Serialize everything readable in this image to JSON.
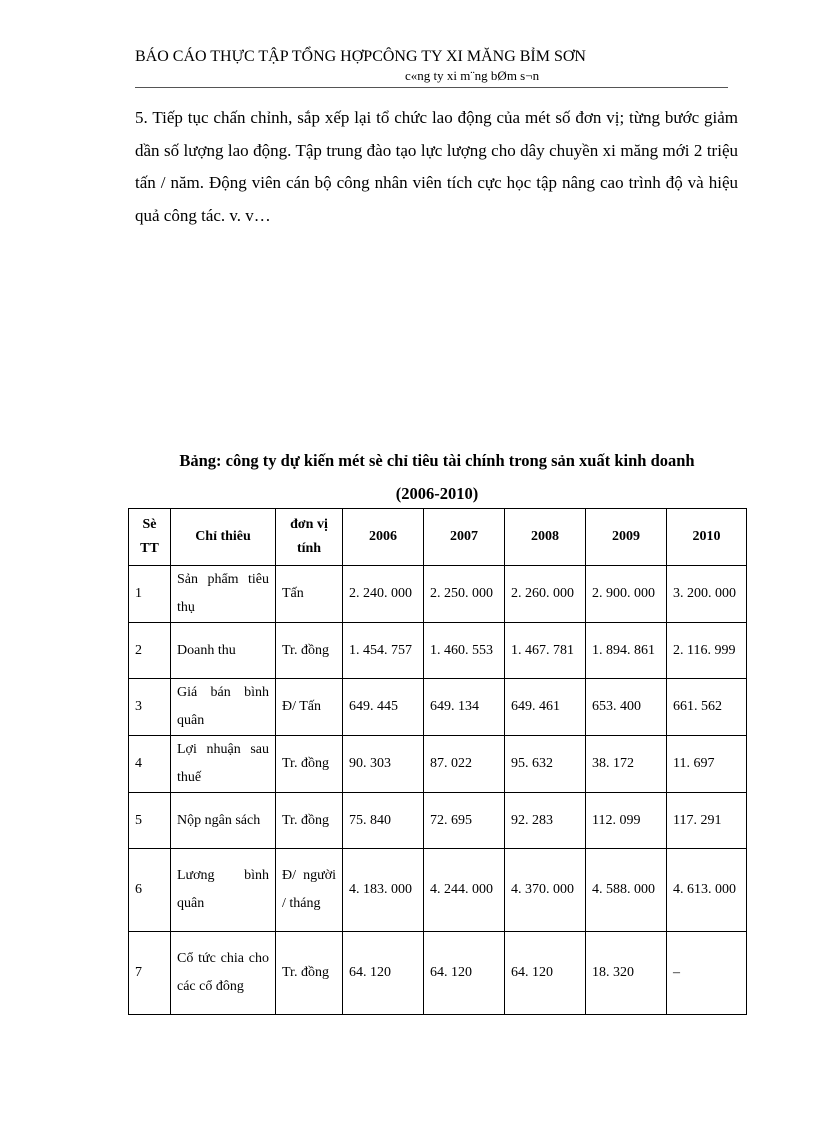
{
  "header": {
    "title": "BÁO CÁO THỰC TẬP TỔNG HỢPCÔNG TY XI MĂNG BỈM SƠN",
    "subtitle": "c«ng ty xi m¨ng bØm s¬n"
  },
  "paragraph": "5. Tiếp tục chấn chỉnh, sắp xếp lại tổ chức lao động của mét số đơn vị; từng bước giảm dần số lượng lao động. Tập trung đào tạo lực lượng cho dây chuyền xi măng mới 2 triệu tấn / năm. Động viên cán bộ công nhân viên tích cực học tập nâng cao trình độ và hiệu quả công tác. v. v…",
  "table": {
    "title": "Bảng: công ty dự kiến mét sè chỉ tiêu tài chính trong sản xuất kinh doanh",
    "period": "(2006-2010)",
    "columns": [
      "Sè TT",
      "Chỉ thiêu",
      "đơn vị tính",
      "2006",
      "2007",
      "2008",
      "2009",
      "2010"
    ],
    "rows": [
      [
        "1",
        "Sản phẩm tiêu thụ",
        "Tấn",
        "2. 240. 000",
        "2. 250. 000",
        "2. 260. 000",
        "2. 900. 000",
        "3. 200. 000"
      ],
      [
        "2",
        "Doanh thu",
        "Tr. đồng",
        "1. 454. 757",
        "1. 460. 553",
        "1. 467. 781",
        "1. 894. 861",
        "2. 116. 999"
      ],
      [
        "3",
        "Giá bán bình quân",
        "Đ/ Tấn",
        "649. 445",
        "649. 134",
        "649. 461",
        "653. 400",
        "661. 562"
      ],
      [
        "4",
        "Lợi nhuận sau thuế",
        "Tr. đồng",
        "90. 303",
        "87. 022",
        "95. 632",
        "38. 172",
        "11. 697"
      ],
      [
        "5",
        "Nộp ngân sách",
        "Tr. đồng",
        "75. 840",
        "72. 695",
        "92. 283",
        "112. 099",
        "117. 291"
      ],
      [
        "6",
        "Lương bình quân",
        "Đ/ người / tháng",
        "4. 183. 000",
        "4. 244. 000",
        "4. 370. 000",
        "4. 588. 000",
        "4. 613. 000"
      ],
      [
        "7",
        "Cổ tức chia cho các cổ đông",
        "Tr. đồng",
        "64. 120",
        "64. 120",
        "64. 120",
        "18. 320",
        "–"
      ]
    ]
  }
}
